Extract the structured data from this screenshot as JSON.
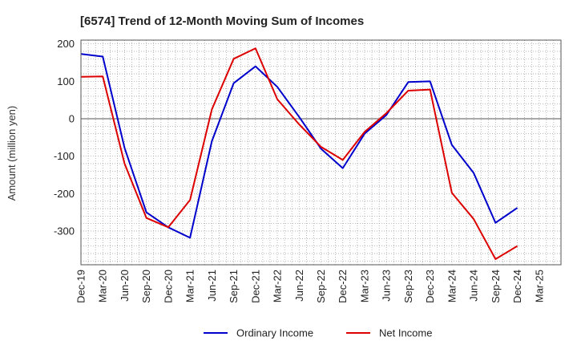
{
  "chart_data": {
    "type": "line",
    "title": "[6574]  Trend of 12-Month Moving Sum of Incomes",
    "xlabel": "",
    "ylabel": "Amount (million yen)",
    "ylim": [
      -390,
      210
    ],
    "yticks": [
      200,
      100,
      0,
      -100,
      -200,
      -300
    ],
    "ytick_labels": [
      "200",
      "100",
      "0",
      "-100",
      "-200",
      "-300"
    ],
    "grid": true,
    "legend_position": "bottom-center",
    "x": [
      "Dec-19",
      "Mar-20",
      "Jun-20",
      "Sep-20",
      "Dec-20",
      "Mar-21",
      "Jun-21",
      "Sep-21",
      "Dec-21",
      "Mar-22",
      "Jun-22",
      "Sep-22",
      "Dec-22",
      "Mar-23",
      "Jun-23",
      "Sep-23",
      "Dec-23",
      "Mar-24",
      "Jun-24",
      "Sep-24",
      "Dec-24",
      "Mar-25"
    ],
    "series": [
      {
        "name": "Ordinary Income",
        "color": "#0000cc",
        "values": [
          173,
          166,
          -78,
          -250,
          -290,
          -318,
          -60,
          95,
          140,
          85,
          5,
          -80,
          -132,
          -40,
          10,
          98,
          100,
          -70,
          -145,
          -278,
          -238,
          null
        ]
      },
      {
        "name": "Net Income",
        "color": "#dd0000",
        "values": [
          112,
          113,
          -120,
          -265,
          -290,
          -217,
          25,
          160,
          188,
          52,
          -15,
          -75,
          -110,
          -35,
          15,
          75,
          78,
          -198,
          -268,
          -375,
          -340,
          null
        ]
      }
    ]
  }
}
